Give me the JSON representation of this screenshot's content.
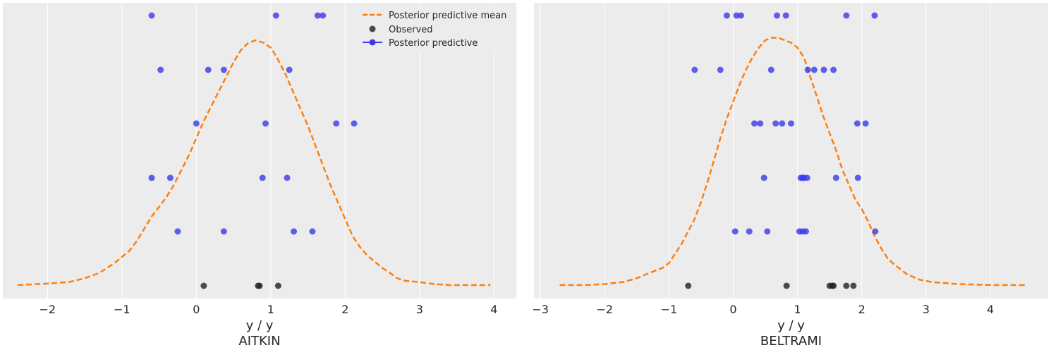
{
  "chart_data": [
    {
      "type": "scatter",
      "panel": "AITKIN",
      "xlabel": "y / y",
      "xlabel_2": "AITKIN",
      "ylabel": "",
      "xlim": [
        -2.6,
        4.3
      ],
      "x_ticks": [
        -2,
        -1,
        0,
        1,
        2,
        3,
        4
      ],
      "x_tick_labels": [
        "−2",
        "−1",
        "0",
        "1",
        "2",
        "3",
        "4"
      ],
      "grid": "vertical",
      "legend_position": "top-right",
      "legend": [
        "Posterior predictive mean",
        "Observed",
        "Posterior predictive"
      ],
      "series": [
        {
          "name": "Posterior predictive mean",
          "kind": "line",
          "color": "#ff7f0e",
          "x": [
            -2.4,
            -2.0,
            -1.7,
            -1.5,
            -1.3,
            -1.1,
            -0.9,
            -0.8,
            -0.7,
            -0.6,
            -0.5,
            -0.4,
            -0.3,
            -0.2,
            -0.1,
            0.0,
            0.1,
            0.2,
            0.3,
            0.4,
            0.5,
            0.6,
            0.7,
            0.8,
            0.9,
            1.0,
            1.1,
            1.2,
            1.3,
            1.4,
            1.5,
            1.6,
            1.7,
            1.8,
            1.9,
            2.0,
            2.1,
            2.2,
            2.3,
            2.4,
            2.5,
            2.6,
            2.7,
            2.8,
            3.0,
            3.2,
            3.4,
            3.7,
            3.95
          ],
          "y": [
            0.0,
            0.006,
            0.013,
            0.028,
            0.05,
            0.09,
            0.14,
            0.18,
            0.23,
            0.28,
            0.32,
            0.36,
            0.41,
            0.47,
            0.53,
            0.6,
            0.67,
            0.73,
            0.79,
            0.85,
            0.91,
            0.96,
            0.99,
            1.0,
            0.99,
            0.97,
            0.92,
            0.86,
            0.79,
            0.72,
            0.65,
            0.57,
            0.49,
            0.41,
            0.34,
            0.27,
            0.2,
            0.155,
            0.12,
            0.095,
            0.07,
            0.05,
            0.028,
            0.018,
            0.012,
            0.004,
            0.0,
            0.0,
            0.0
          ]
        },
        {
          "name": "Observed",
          "kind": "points",
          "color": "#222222",
          "row": 0,
          "x": [
            0.1,
            0.83,
            0.85,
            1.1
          ]
        },
        {
          "name": "Posterior predictive",
          "kind": "points",
          "color": "#3a3ae8",
          "rows": [
            {
              "row": 1,
              "x": [
                -0.25,
                0.37,
                1.31,
                1.56
              ]
            },
            {
              "row": 2,
              "x": [
                -0.6,
                -0.35,
                0.89,
                1.22
              ]
            },
            {
              "row": 3,
              "x": [
                0.0,
                0.93,
                1.88,
                2.12
              ]
            },
            {
              "row": 4,
              "x": [
                -0.48,
                0.16,
                0.37,
                1.25
              ]
            },
            {
              "row": 5,
              "x": [
                -0.6,
                1.07,
                1.63,
                1.7
              ]
            }
          ]
        }
      ]
    },
    {
      "type": "scatter",
      "panel": "BELTRAMI",
      "xlabel": "y / y",
      "xlabel_2": "BELTRAMI",
      "ylabel": "",
      "xlim": [
        -3.1,
        4.9
      ],
      "x_ticks": [
        -3,
        -2,
        -1,
        0,
        1,
        2,
        3,
        4
      ],
      "x_tick_labels": [
        "−3",
        "−2",
        "−1",
        "0",
        "1",
        "2",
        "3",
        "4"
      ],
      "grid": "vertical",
      "series": [
        {
          "name": "Posterior predictive mean",
          "kind": "line",
          "color": "#ff7f0e",
          "x": [
            -2.7,
            -2.3,
            -2.0,
            -1.7,
            -1.5,
            -1.3,
            -1.1,
            -1.0,
            -0.9,
            -0.8,
            -0.7,
            -0.6,
            -0.5,
            -0.4,
            -0.3,
            -0.2,
            -0.1,
            0.0,
            0.1,
            0.2,
            0.3,
            0.4,
            0.5,
            0.6,
            0.7,
            0.8,
            0.9,
            1.0,
            1.1,
            1.2,
            1.3,
            1.4,
            1.5,
            1.6,
            1.7,
            1.8,
            1.9,
            2.0,
            2.1,
            2.2,
            2.3,
            2.4,
            2.5,
            2.7,
            2.9,
            3.1,
            3.5,
            4.0,
            4.55
          ],
          "y": [
            0.0,
            0.0,
            0.004,
            0.013,
            0.028,
            0.05,
            0.07,
            0.09,
            0.13,
            0.17,
            0.22,
            0.27,
            0.34,
            0.42,
            0.51,
            0.6,
            0.68,
            0.75,
            0.82,
            0.88,
            0.93,
            0.97,
            1.0,
            1.01,
            1.01,
            1.0,
            0.99,
            0.97,
            0.93,
            0.85,
            0.77,
            0.69,
            0.62,
            0.55,
            0.47,
            0.41,
            0.35,
            0.31,
            0.26,
            0.2,
            0.15,
            0.11,
            0.085,
            0.045,
            0.022,
            0.012,
            0.004,
            0.0,
            0.0
          ]
        },
        {
          "name": "Observed",
          "kind": "points",
          "color": "#222222",
          "row": 0,
          "x": [
            -0.7,
            0.83,
            1.5,
            1.54,
            1.56,
            1.76,
            1.87
          ]
        },
        {
          "name": "Posterior predictive",
          "kind": "points",
          "color": "#3a3ae8",
          "rows": [
            {
              "row": 1,
              "x": [
                0.03,
                0.25,
                0.53,
                1.03,
                1.08,
                1.13,
                2.21
              ]
            },
            {
              "row": 2,
              "x": [
                0.48,
                1.05,
                1.08,
                1.1,
                1.15,
                1.6,
                1.94
              ]
            },
            {
              "row": 3,
              "x": [
                0.33,
                0.42,
                0.66,
                0.76,
                0.9,
                1.93,
                2.06
              ]
            },
            {
              "row": 4,
              "x": [
                -0.6,
                -0.2,
                0.59,
                1.16,
                1.26,
                1.41,
                1.56
              ]
            },
            {
              "row": 5,
              "x": [
                -0.1,
                0.05,
                0.12,
                0.68,
                0.82,
                1.76,
                2.2
              ]
            }
          ]
        }
      ]
    }
  ]
}
